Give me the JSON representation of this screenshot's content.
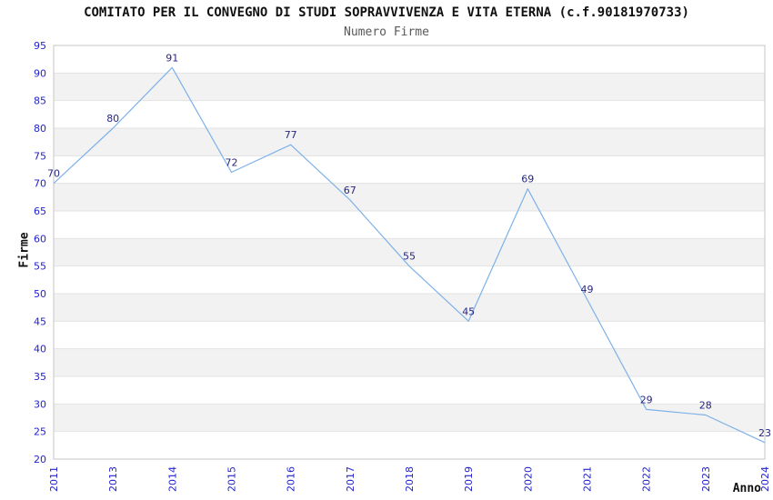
{
  "chart_data": {
    "type": "line",
    "title": "COMITATO PER IL CONVEGNO DI STUDI SOPRAVVIVENZA E VITA ETERNA (c.f.90181970733)",
    "subtitle": "Numero Firme",
    "xlabel": "Anno",
    "ylabel": "Firme",
    "categories": [
      "2011",
      "2013",
      "2014",
      "2015",
      "2016",
      "2017",
      "2018",
      "2019",
      "2020",
      "2021",
      "2022",
      "2023",
      "2024"
    ],
    "values": [
      70,
      80,
      91,
      72,
      77,
      67,
      55,
      45,
      69,
      49,
      29,
      28,
      23
    ],
    "ylim": [
      20,
      95
    ],
    "ytick_step": 5,
    "grid": "horizontal-bands-alternating",
    "legend": "none",
    "point_markers": "none",
    "data_labels": "above-each-point",
    "colors": {
      "line": "#7db1e8",
      "point_label": "#262680",
      "tick_label": "#2323cd",
      "band_fill": "#f2f2f2",
      "grid_line": "#e3e3e3",
      "plot_border": "#c6c6c6",
      "title": "#111111",
      "subtitle": "#595959",
      "axis_label": "#111111",
      "background": "#ffffff"
    }
  }
}
